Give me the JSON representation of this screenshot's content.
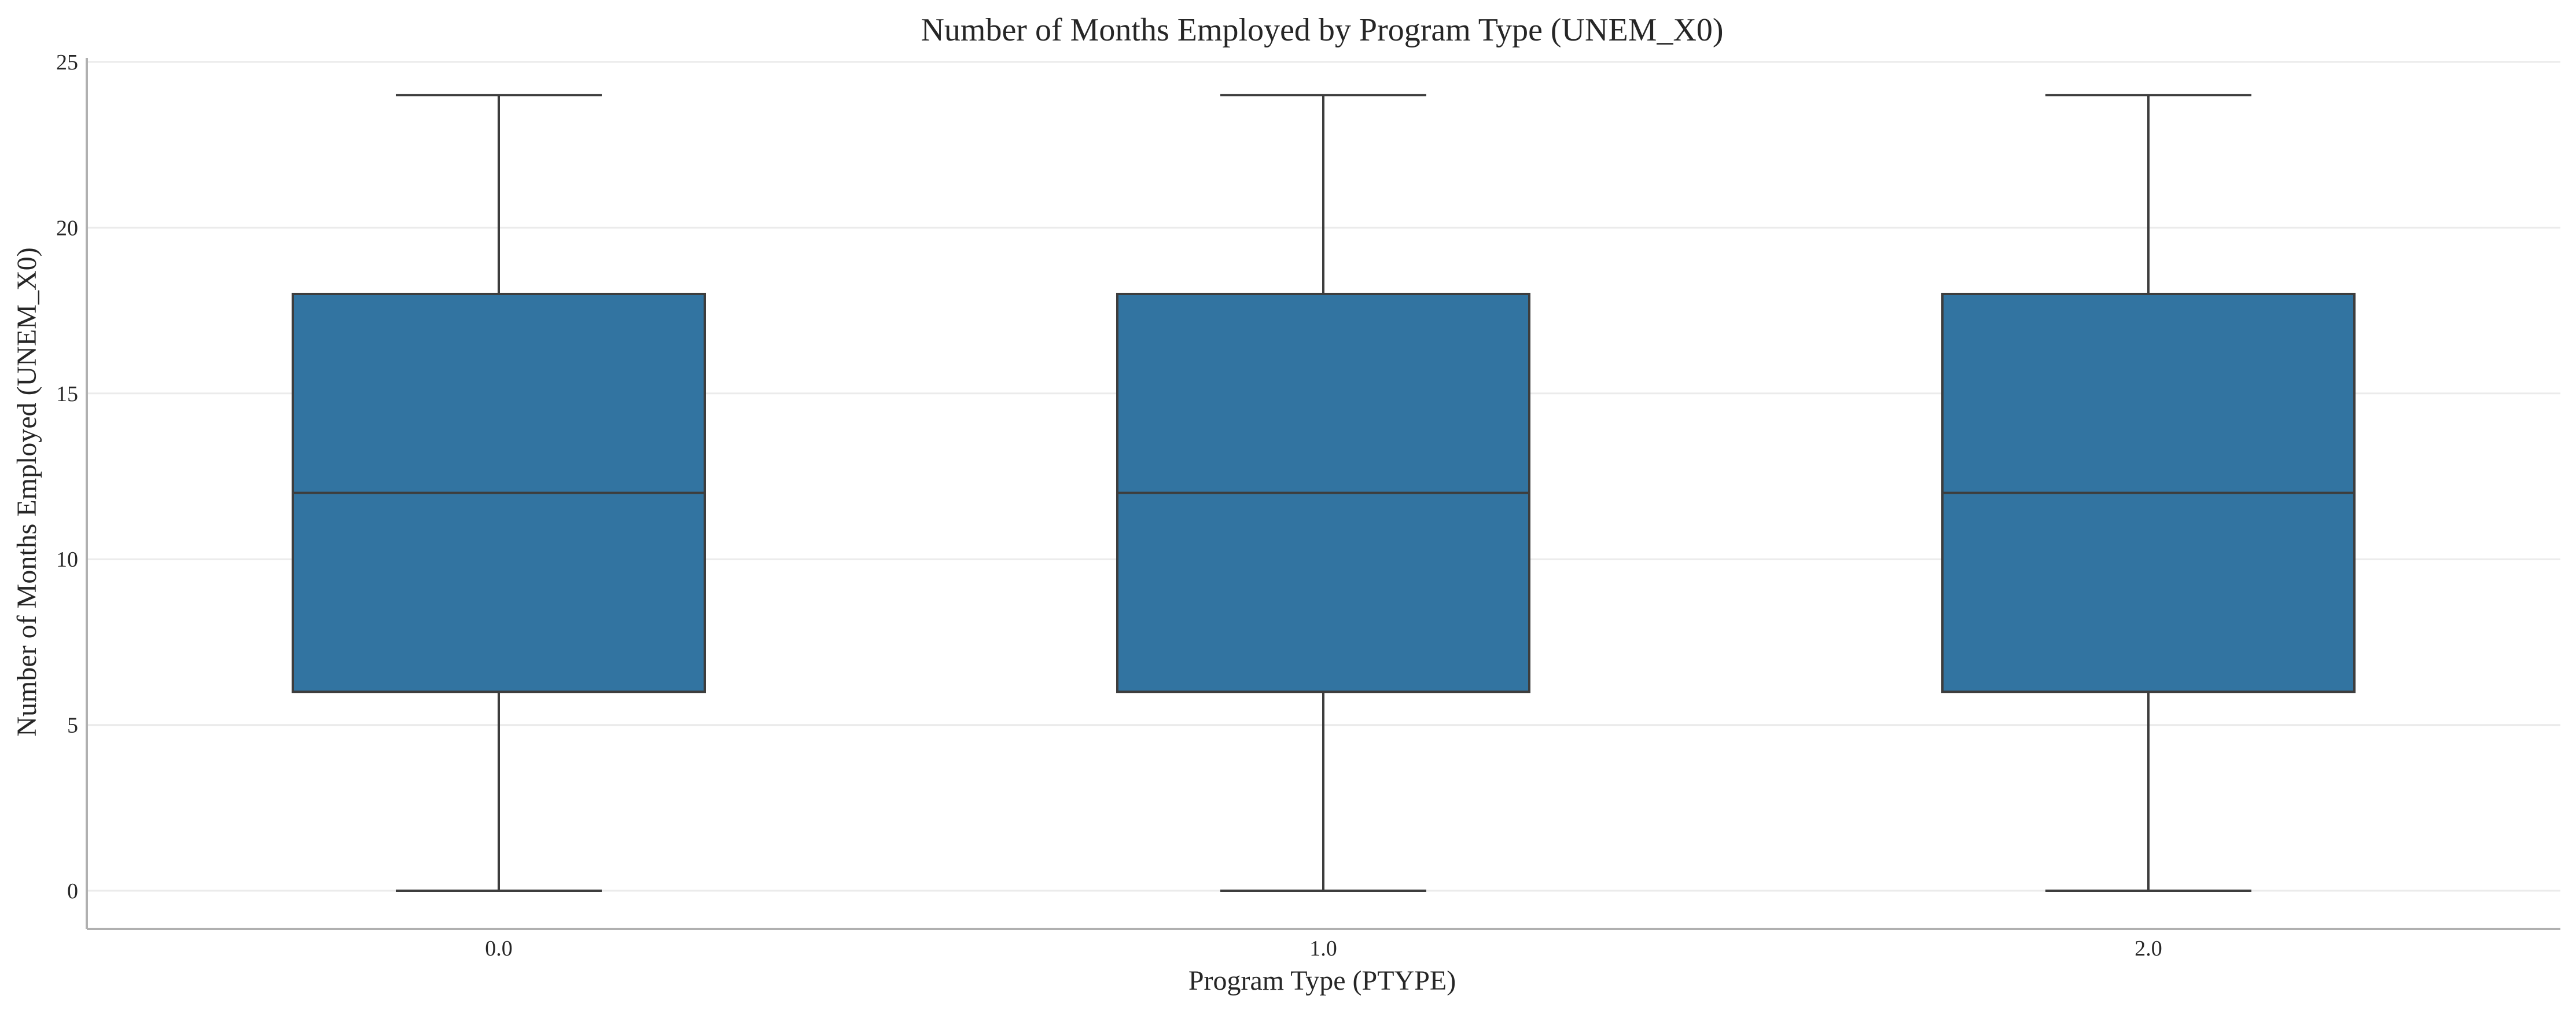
{
  "chart_data": {
    "type": "box",
    "title": "Number of Months Employed by Program Type (UNEM_X0)",
    "xlabel": "Program Type (PTYPE)",
    "ylabel": "Number of Months Employed (UNEM_X0)",
    "ylim": [
      -1.2,
      25
    ],
    "yticks": [
      0,
      5,
      10,
      15,
      20,
      25
    ],
    "grid": true,
    "box_color": "#3274a1",
    "categories": [
      "0.0",
      "1.0",
      "2.0"
    ],
    "boxes": [
      {
        "category": "0.0",
        "min": 0,
        "q1": 6,
        "median": 12,
        "q3": 18,
        "max": 24
      },
      {
        "category": "1.0",
        "min": 0,
        "q1": 6,
        "median": 12,
        "q3": 18,
        "max": 24
      },
      {
        "category": "2.0",
        "min": 0,
        "q1": 6,
        "median": 12,
        "q3": 18,
        "max": 24
      }
    ]
  }
}
